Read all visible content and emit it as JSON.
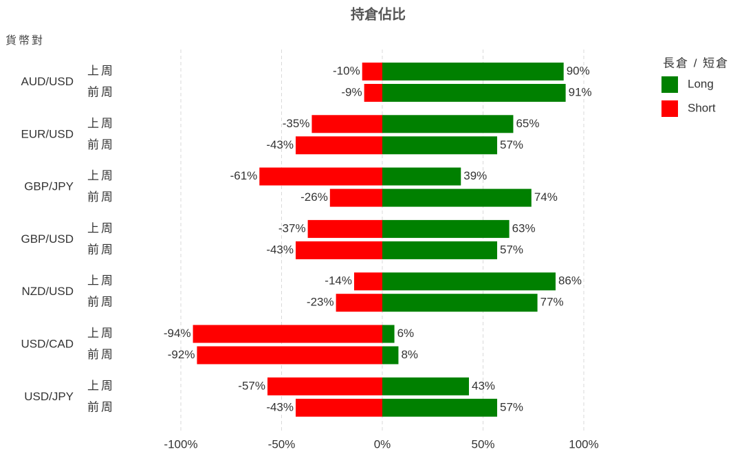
{
  "chart_data": {
    "type": "diverging-bar",
    "title": "持倉佔比",
    "y_label": "貨幣對",
    "groups": [
      "AUD/USD",
      "EUR/USD",
      "GBP/JPY",
      "GBP/USD",
      "NZD/USD",
      "USD/CAD",
      "USD/JPY"
    ],
    "periods": [
      "上周",
      "前周"
    ],
    "legend_title": "長倉 / 短倉",
    "series": [
      {
        "name": "Long",
        "color": "#008000",
        "values": [
          90,
          91,
          65,
          57,
          39,
          74,
          63,
          57,
          86,
          77,
          6,
          8,
          43,
          57
        ],
        "value_labels": [
          "90%",
          "91%",
          "65%",
          "57%",
          "39%",
          "74%",
          "63%",
          "57%",
          "86%",
          "77%",
          "6%",
          "8%",
          "43%",
          "57%"
        ]
      },
      {
        "name": "Short",
        "color": "#ff0000",
        "values": [
          -10,
          -9,
          -35,
          -43,
          -61,
          -26,
          -37,
          -43,
          -14,
          -23,
          -94,
          -92,
          -57,
          -43
        ],
        "value_labels": [
          "-10%",
          "-9%",
          "-35%",
          "-43%",
          "-61%",
          "-26%",
          "-37%",
          "-43%",
          "-14%",
          "-23%",
          "-94%",
          "-92%",
          "-57%",
          "-43%"
        ]
      }
    ],
    "xlim": [
      -100,
      100
    ],
    "xticks": [
      {
        "value": -100,
        "label": "-100%"
      },
      {
        "value": -50,
        "label": "-50%"
      },
      {
        "value": 0,
        "label": "0%"
      },
      {
        "value": 50,
        "label": "50%"
      },
      {
        "value": 100,
        "label": "100%"
      }
    ],
    "grid": true
  }
}
